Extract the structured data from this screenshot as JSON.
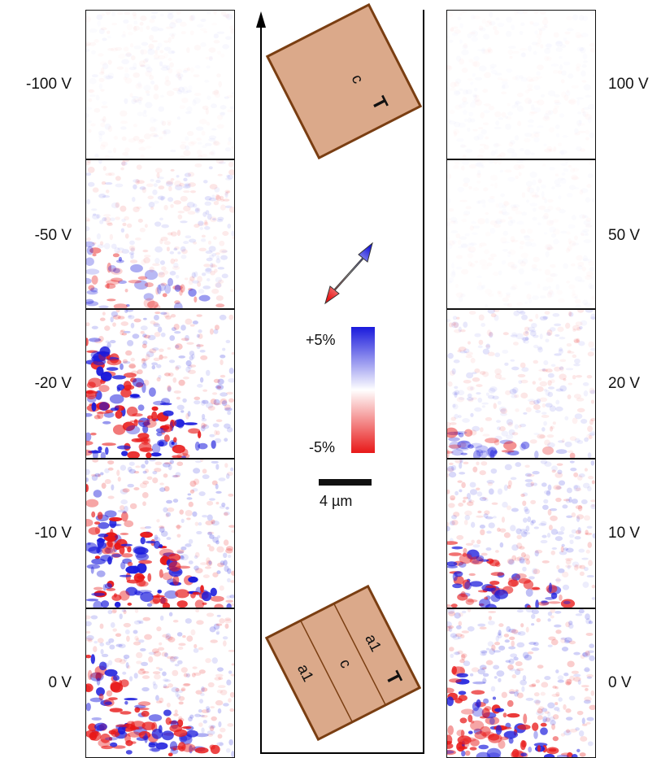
{
  "left_column": {
    "panels": [
      {
        "voltage_label": "-100 V",
        "contrast_level": 0.15,
        "domain_fraction": 0.0
      },
      {
        "voltage_label": "-50 V",
        "contrast_level": 0.5,
        "domain_fraction": 0.45
      },
      {
        "voltage_label": "-20 V",
        "contrast_level": 1.0,
        "domain_fraction": 0.85
      },
      {
        "voltage_label": "-10 V",
        "contrast_level": 1.0,
        "domain_fraction": 0.85
      },
      {
        "voltage_label": "0 V",
        "contrast_level": 0.9,
        "domain_fraction": 0.7
      }
    ]
  },
  "right_column": {
    "panels": [
      {
        "voltage_label": "100 V",
        "contrast_level": 0.1,
        "domain_fraction": 0.0
      },
      {
        "voltage_label": "50 V",
        "contrast_level": 0.1,
        "domain_fraction": 0.0
      },
      {
        "voltage_label": "20 V",
        "contrast_level": 0.5,
        "domain_fraction": 0.2
      },
      {
        "voltage_label": "10 V",
        "contrast_level": 0.8,
        "domain_fraction": 0.45
      },
      {
        "voltage_label": "0 V",
        "contrast_level": 0.9,
        "domain_fraction": 0.65
      }
    ]
  },
  "colorbar": {
    "max_label": "+5%",
    "min_label": "-5%",
    "color_positive": "#1a1adc",
    "color_negative": "#e81818",
    "color_zero": "#ffffff"
  },
  "scale_bar": {
    "label": "4 µm"
  },
  "crystal_top": {
    "labels": [
      "c",
      "T"
    ],
    "fill": "#dba98a",
    "stroke": "#7a3e12"
  },
  "crystal_bottom": {
    "labels": [
      "a1",
      "c",
      "a1",
      "T"
    ],
    "fill": "#dba98a",
    "stroke": "#7a3e12"
  }
}
